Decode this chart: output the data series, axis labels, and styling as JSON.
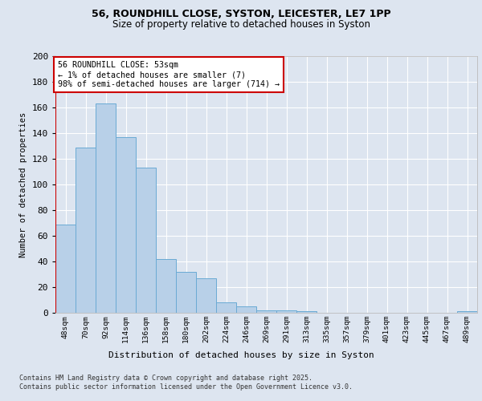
{
  "title_line1": "56, ROUNDHILL CLOSE, SYSTON, LEICESTER, LE7 1PP",
  "title_line2": "Size of property relative to detached houses in Syston",
  "xlabel": "Distribution of detached houses by size in Syston",
  "ylabel": "Number of detached properties",
  "categories": [
    "48sqm",
    "70sqm",
    "92sqm",
    "114sqm",
    "136sqm",
    "158sqm",
    "180sqm",
    "202sqm",
    "224sqm",
    "246sqm",
    "269sqm",
    "291sqm",
    "313sqm",
    "335sqm",
    "357sqm",
    "379sqm",
    "401sqm",
    "423sqm",
    "445sqm",
    "467sqm",
    "489sqm"
  ],
  "bar_values": [
    69,
    129,
    163,
    137,
    113,
    42,
    32,
    27,
    8,
    5,
    2,
    2,
    1,
    0,
    0,
    0,
    0,
    0,
    0,
    0,
    1
  ],
  "bar_color": "#b8d0e8",
  "bar_edgecolor": "#6aaad4",
  "annotation_text": "56 ROUNDHILL CLOSE: 53sqm\n← 1% of detached houses are smaller (7)\n98% of semi-detached houses are larger (714) →",
  "annotation_box_facecolor": "#ffffff",
  "annotation_box_edgecolor": "#cc0000",
  "vline_color": "#cc0000",
  "ylim": [
    0,
    200
  ],
  "yticks": [
    0,
    20,
    40,
    60,
    80,
    100,
    120,
    140,
    160,
    180,
    200
  ],
  "footer_text": "Contains HM Land Registry data © Crown copyright and database right 2025.\nContains public sector information licensed under the Open Government Licence v3.0.",
  "background_color": "#dde5f0",
  "plot_background": "#dde5f0"
}
